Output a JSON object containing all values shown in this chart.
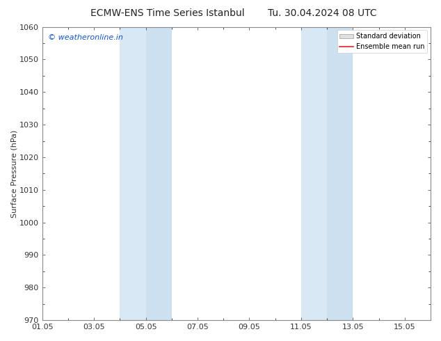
{
  "title_left": "ECMW-ENS Time Series Istanbul",
  "title_right": "Tu. 30.04.2024 08 UTC",
  "ylabel": "Surface Pressure (hPa)",
  "ylim": [
    970,
    1060
  ],
  "yticks": [
    970,
    980,
    990,
    1000,
    1010,
    1020,
    1030,
    1040,
    1050,
    1060
  ],
  "xtick_labels": [
    "01.05",
    "03.05",
    "05.05",
    "07.05",
    "09.05",
    "11.05",
    "13.05",
    "15.05"
  ],
  "xtick_positions": [
    0,
    2,
    4,
    6,
    8,
    10,
    12,
    14
  ],
  "xlim": [
    0,
    15
  ],
  "shaded_bands": [
    {
      "x_start": 3.0,
      "x_end": 4.0,
      "color": "#d8e8f4"
    },
    {
      "x_start": 4.0,
      "x_end": 5.0,
      "color": "#cce0f0"
    },
    {
      "x_start": 10.0,
      "x_end": 11.0,
      "color": "#d8e8f4"
    },
    {
      "x_start": 11.0,
      "x_end": 12.0,
      "color": "#cce0f0"
    }
  ],
  "shade_color_light": "#d8e8f4",
  "shade_color_dark": "#c5daf0",
  "background_color": "#ffffff",
  "watermark_text": "© weatheronline.in",
  "watermark_color": "#1155cc",
  "legend_std_label": "Standard deviation",
  "legend_mean_label": "Ensemble mean run",
  "legend_std_facecolor": "#e0e0e0",
  "legend_std_edgecolor": "#999999",
  "legend_mean_color": "#dd2222",
  "spine_color": "#888888",
  "tick_color": "#333333",
  "title_fontsize": 10,
  "axis_label_fontsize": 8,
  "tick_fontsize": 8,
  "watermark_fontsize": 8,
  "legend_fontsize": 7
}
